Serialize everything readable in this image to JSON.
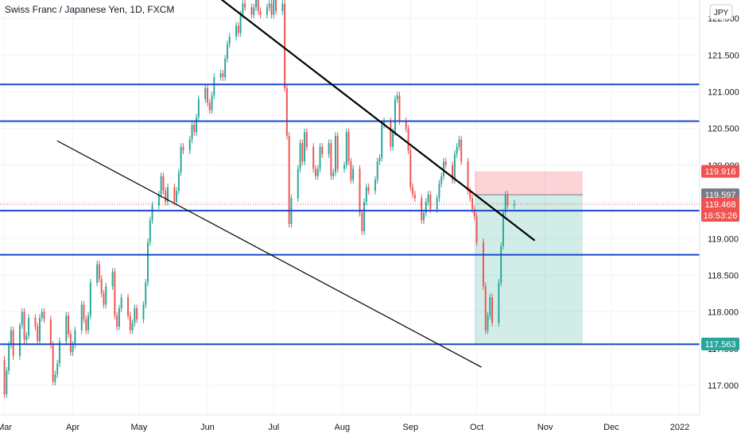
{
  "chart_data": {
    "type": "candlestick",
    "title": "Swiss Franc / Japanese Yen, 1D, FXCM",
    "currency": "JPY",
    "ylim": [
      116.6,
      122.25
    ],
    "y_ticks": [
      117.0,
      117.5,
      118.0,
      118.5,
      119.0,
      119.5,
      120.0,
      120.5,
      121.0,
      121.5,
      122.0
    ],
    "y_tick_labels": [
      "117.000",
      "117.500",
      "118.000",
      "118.500",
      "119.000",
      "119.500",
      "120.000",
      "120.500",
      "121.000",
      "121.500",
      "122.000"
    ],
    "x_range": [
      "2021-02-27",
      "2022-01-10"
    ],
    "x_ticks": [
      {
        "label": "Mar",
        "date": "2021-03-01"
      },
      {
        "label": "Apr",
        "date": "2021-04-01"
      },
      {
        "label": "May",
        "date": "2021-05-01"
      },
      {
        "label": "Jun",
        "date": "2021-06-01"
      },
      {
        "label": "Jul",
        "date": "2021-07-01"
      },
      {
        "label": "Aug",
        "date": "2021-08-01"
      },
      {
        "label": "Sep",
        "date": "2021-09-01"
      },
      {
        "label": "Oct",
        "date": "2021-10-01"
      },
      {
        "label": "Nov",
        "date": "2021-11-01"
      },
      {
        "label": "Dec",
        "date": "2021-12-01"
      },
      {
        "label": "2022",
        "date": "2022-01-01"
      }
    ],
    "horizontal_levels": [
      121.1,
      120.6,
      119.38,
      118.78,
      117.56
    ],
    "trendlines": [
      {
        "from": [
          "2021-05-30",
          122.45
        ],
        "to": [
          "2021-10-27",
          118.98
        ],
        "width": 2.2
      },
      {
        "from": [
          "2021-03-25",
          120.33
        ],
        "to": [
          "2021-10-03",
          117.25
        ],
        "width": 1.2
      }
    ],
    "short_position": {
      "from": "2021-09-30",
      "to": "2021-11-18",
      "entry": 119.597,
      "stop": 119.916,
      "target": 117.563
    },
    "current_price": 119.468,
    "countdown": "16:53:26",
    "price_badges": [
      {
        "label": "119.916",
        "value": 119.916,
        "color": "#ef5350"
      },
      {
        "label": "119.597",
        "value": 119.597,
        "color": "#787b86"
      },
      {
        "label": "117.563",
        "value": 117.563,
        "color": "#26a69a"
      }
    ],
    "grid": true,
    "up_color": "#26a69a",
    "down_color": "#ef5350",
    "level_color": "#1848cc",
    "candles": {
      "open": [
        117.35,
        116.88,
        117.2,
        117.55,
        117.75,
        117.4,
        117.82,
        118.0,
        117.62,
        117.68,
        117.92,
        117.8,
        117.6,
        117.92,
        118.0,
        117.9,
        117.55,
        117.05,
        117.15,
        117.3,
        117.6,
        117.95,
        117.7,
        117.45,
        117.55,
        117.75,
        118.1,
        117.9,
        117.75,
        117.95,
        118.4,
        118.65,
        118.45,
        118.25,
        118.1,
        118.35,
        118.55,
        117.95,
        117.8,
        118.05,
        118.2,
        117.95,
        117.75,
        117.85,
        118.05,
        117.9,
        118.1,
        118.4,
        118.95,
        119.25,
        119.45,
        119.6,
        119.85,
        119.65,
        119.5,
        119.7,
        119.5,
        119.65,
        119.9,
        120.25,
        120.2,
        120.35,
        120.55,
        120.45,
        120.65,
        120.9,
        121.05,
        120.85,
        120.75,
        120.95,
        121.2,
        121.25,
        121.2,
        121.45,
        121.65,
        121.75,
        121.9,
        121.8,
        122.05,
        122.2,
        122.15,
        122.05,
        122.15,
        122.25,
        122.1,
        122.05,
        122.15,
        122.2,
        122.05,
        122.25,
        122.1,
        122.2,
        121.05,
        120.4,
        119.2,
        119.55,
        119.95,
        120.3,
        120.05,
        120.45,
        120.25,
        119.95,
        119.85,
        119.95,
        120.25,
        120.15,
        120.3,
        119.85,
        119.9,
        120.4,
        119.95,
        120.0,
        120.45,
        120.05,
        119.8,
        119.95,
        119.35,
        119.1,
        119.5,
        119.7,
        119.65,
        119.8,
        120.05,
        120.1,
        120.55,
        120.6,
        120.25,
        120.45,
        120.9,
        120.95,
        120.6,
        120.5,
        120.2,
        119.7,
        119.6,
        119.55,
        119.25,
        119.35,
        119.5,
        119.6,
        119.4,
        119.55,
        119.75,
        119.85,
        120.05,
        120.0,
        119.8,
        120.15,
        120.25,
        120.35,
        120.05,
        119.65,
        119.55,
        119.4,
        119.3,
        118.95,
        118.35,
        117.75,
        117.95,
        118.2,
        117.85,
        118.4,
        118.9,
        119.35,
        119.6,
        119.45
      ],
      "close": [
        116.88,
        117.2,
        117.55,
        117.75,
        117.4,
        117.82,
        118.0,
        117.62,
        117.68,
        117.92,
        117.8,
        117.6,
        117.92,
        118.0,
        117.9,
        117.55,
        117.05,
        117.15,
        117.3,
        117.6,
        117.95,
        117.7,
        117.45,
        117.55,
        117.75,
        118.1,
        117.9,
        117.75,
        117.95,
        118.4,
        118.65,
        118.45,
        118.25,
        118.1,
        118.35,
        118.55,
        117.95,
        117.8,
        118.05,
        118.2,
        117.95,
        117.75,
        117.85,
        118.05,
        117.9,
        118.1,
        118.4,
        118.95,
        119.25,
        119.45,
        119.6,
        119.85,
        119.65,
        119.5,
        119.7,
        119.5,
        119.65,
        119.9,
        120.25,
        120.2,
        120.35,
        120.55,
        120.45,
        120.65,
        120.9,
        121.05,
        120.85,
        120.75,
        120.95,
        121.2,
        121.25,
        121.2,
        121.45,
        121.65,
        121.75,
        121.9,
        121.8,
        122.05,
        122.2,
        122.15,
        122.05,
        122.15,
        122.25,
        122.1,
        122.05,
        122.15,
        122.2,
        122.05,
        122.25,
        122.1,
        122.2,
        121.05,
        120.4,
        119.2,
        119.55,
        119.95,
        120.3,
        120.05,
        120.45,
        120.25,
        119.95,
        119.85,
        119.95,
        120.25,
        120.15,
        120.3,
        119.85,
        119.9,
        120.4,
        119.95,
        120.0,
        120.45,
        120.05,
        119.8,
        119.95,
        119.35,
        119.1,
        119.5,
        119.7,
        119.65,
        119.8,
        120.05,
        120.1,
        120.55,
        120.6,
        120.25,
        120.45,
        120.9,
        120.95,
        120.6,
        120.5,
        120.2,
        119.7,
        119.6,
        119.55,
        119.25,
        119.35,
        119.5,
        119.6,
        119.4,
        119.55,
        119.75,
        119.85,
        120.05,
        120.0,
        119.8,
        120.15,
        120.25,
        120.35,
        120.05,
        119.65,
        119.55,
        119.4,
        119.3,
        118.95,
        118.35,
        117.75,
        117.95,
        118.2,
        117.85,
        118.4,
        118.9,
        119.35,
        119.6,
        119.45,
        119.47
      ],
      "high": [
        117.4,
        117.25,
        117.6,
        117.8,
        117.8,
        117.85,
        118.05,
        118.05,
        117.73,
        117.97,
        117.97,
        117.85,
        117.97,
        118.05,
        118.05,
        117.95,
        117.6,
        117.2,
        117.35,
        117.65,
        118.0,
        118.0,
        117.75,
        117.6,
        117.8,
        118.15,
        118.15,
        117.95,
        118.0,
        118.45,
        118.7,
        118.7,
        118.5,
        118.3,
        118.4,
        118.6,
        118.6,
        118.0,
        118.1,
        118.25,
        118.25,
        118.0,
        117.9,
        118.1,
        118.1,
        118.15,
        118.45,
        119.0,
        119.3,
        119.5,
        119.65,
        119.9,
        119.9,
        119.7,
        119.75,
        119.75,
        119.7,
        119.95,
        120.3,
        120.3,
        120.4,
        120.6,
        120.6,
        120.7,
        120.95,
        121.1,
        121.1,
        120.9,
        121.0,
        121.25,
        121.3,
        121.3,
        121.5,
        121.7,
        121.8,
        121.95,
        121.95,
        122.1,
        122.25,
        122.25,
        122.2,
        122.2,
        122.3,
        122.3,
        122.15,
        122.2,
        122.25,
        122.25,
        122.3,
        122.3,
        122.25,
        122.25,
        121.1,
        120.45,
        119.6,
        120.0,
        120.35,
        120.35,
        120.5,
        120.5,
        120.3,
        120.0,
        120.0,
        120.3,
        120.3,
        120.35,
        120.35,
        119.95,
        120.45,
        120.45,
        120.05,
        120.5,
        120.5,
        120.1,
        120.0,
        120.0,
        119.4,
        119.55,
        119.75,
        119.75,
        119.85,
        120.1,
        120.15,
        120.6,
        120.65,
        120.65,
        120.5,
        120.95,
        121.0,
        121.0,
        120.65,
        120.55,
        120.25,
        119.75,
        119.65,
        119.6,
        119.4,
        119.55,
        119.65,
        119.65,
        119.6,
        119.8,
        119.9,
        120.1,
        120.1,
        120.05,
        120.2,
        120.3,
        120.4,
        120.4,
        120.1,
        119.7,
        119.6,
        119.45,
        119.35,
        119.0,
        118.4,
        118.0,
        118.25,
        118.25,
        118.45,
        118.95,
        119.4,
        119.65,
        119.65,
        119.53
      ],
      "low": [
        116.83,
        116.83,
        117.15,
        117.5,
        117.35,
        117.35,
        117.77,
        117.57,
        117.57,
        117.63,
        117.75,
        117.55,
        117.55,
        117.87,
        117.85,
        117.5,
        117.0,
        117.0,
        117.1,
        117.25,
        117.55,
        117.65,
        117.4,
        117.4,
        117.5,
        117.7,
        117.85,
        117.7,
        117.7,
        117.9,
        118.35,
        118.4,
        118.2,
        118.05,
        118.05,
        118.3,
        117.9,
        117.75,
        117.75,
        118.0,
        117.9,
        117.7,
        117.7,
        117.8,
        117.85,
        117.85,
        118.05,
        118.35,
        118.9,
        119.2,
        119.4,
        119.55,
        119.6,
        119.45,
        119.45,
        119.45,
        119.45,
        119.6,
        119.85,
        120.15,
        120.15,
        120.3,
        120.4,
        120.4,
        120.6,
        120.85,
        120.8,
        120.7,
        120.7,
        120.9,
        121.15,
        121.15,
        121.15,
        121.4,
        121.6,
        121.7,
        121.75,
        121.75,
        122.0,
        122.1,
        122.0,
        122.0,
        122.1,
        122.05,
        122.0,
        122.0,
        122.1,
        122.0,
        122.0,
        122.05,
        122.05,
        121.0,
        120.35,
        119.15,
        119.15,
        119.5,
        119.9,
        120.0,
        120.0,
        120.2,
        119.9,
        119.8,
        119.8,
        119.9,
        120.1,
        120.1,
        119.8,
        119.8,
        119.85,
        119.9,
        119.9,
        119.95,
        120.0,
        119.75,
        119.75,
        119.3,
        119.05,
        119.05,
        119.45,
        119.6,
        119.6,
        119.75,
        120.0,
        120.05,
        120.5,
        120.2,
        120.2,
        120.4,
        120.85,
        120.55,
        120.45,
        120.15,
        119.65,
        119.55,
        119.5,
        119.2,
        119.2,
        119.3,
        119.45,
        119.35,
        119.35,
        119.5,
        119.7,
        119.8,
        119.95,
        119.75,
        119.75,
        120.1,
        120.2,
        120.0,
        119.6,
        119.5,
        119.35,
        119.25,
        118.9,
        118.3,
        117.7,
        117.7,
        117.9,
        117.8,
        117.8,
        118.35,
        118.85,
        119.3,
        119.4,
        119.4
      ]
    }
  }
}
